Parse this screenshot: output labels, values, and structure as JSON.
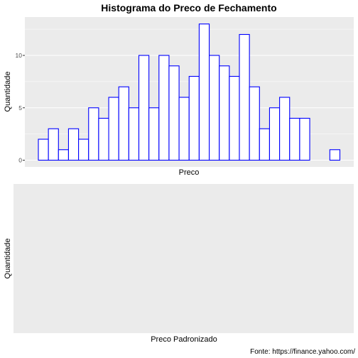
{
  "colors": {
    "panel_background": "#ebebeb",
    "grid_major": "#ffffff",
    "bar_fill": "#ffffff",
    "bar_outline": "#0000ff",
    "tick": "#333333"
  },
  "chart_data": [
    {
      "type": "bar",
      "title": "Histograma do Preco de Fechamento",
      "xlabel": "Preco",
      "ylabel": "Quantidade",
      "counts": [
        2,
        3,
        1,
        3,
        2,
        5,
        4,
        6,
        7,
        5,
        10,
        5,
        10,
        9,
        6,
        8,
        13,
        10,
        9,
        8,
        12,
        7,
        3,
        5,
        6,
        4,
        4,
        0,
        0,
        1
      ],
      "ylim": [
        0,
        13.6
      ],
      "yticks": [
        0,
        5,
        10
      ],
      "grid": true,
      "x_tick_labels_shown": false
    },
    {
      "type": "bar",
      "title": "",
      "xlabel": "Preco Padronizado",
      "ylabel": "Quantidade",
      "counts": [],
      "grid": false
    }
  ],
  "caption": "Fonte: https://finance.yahoo.com/"
}
